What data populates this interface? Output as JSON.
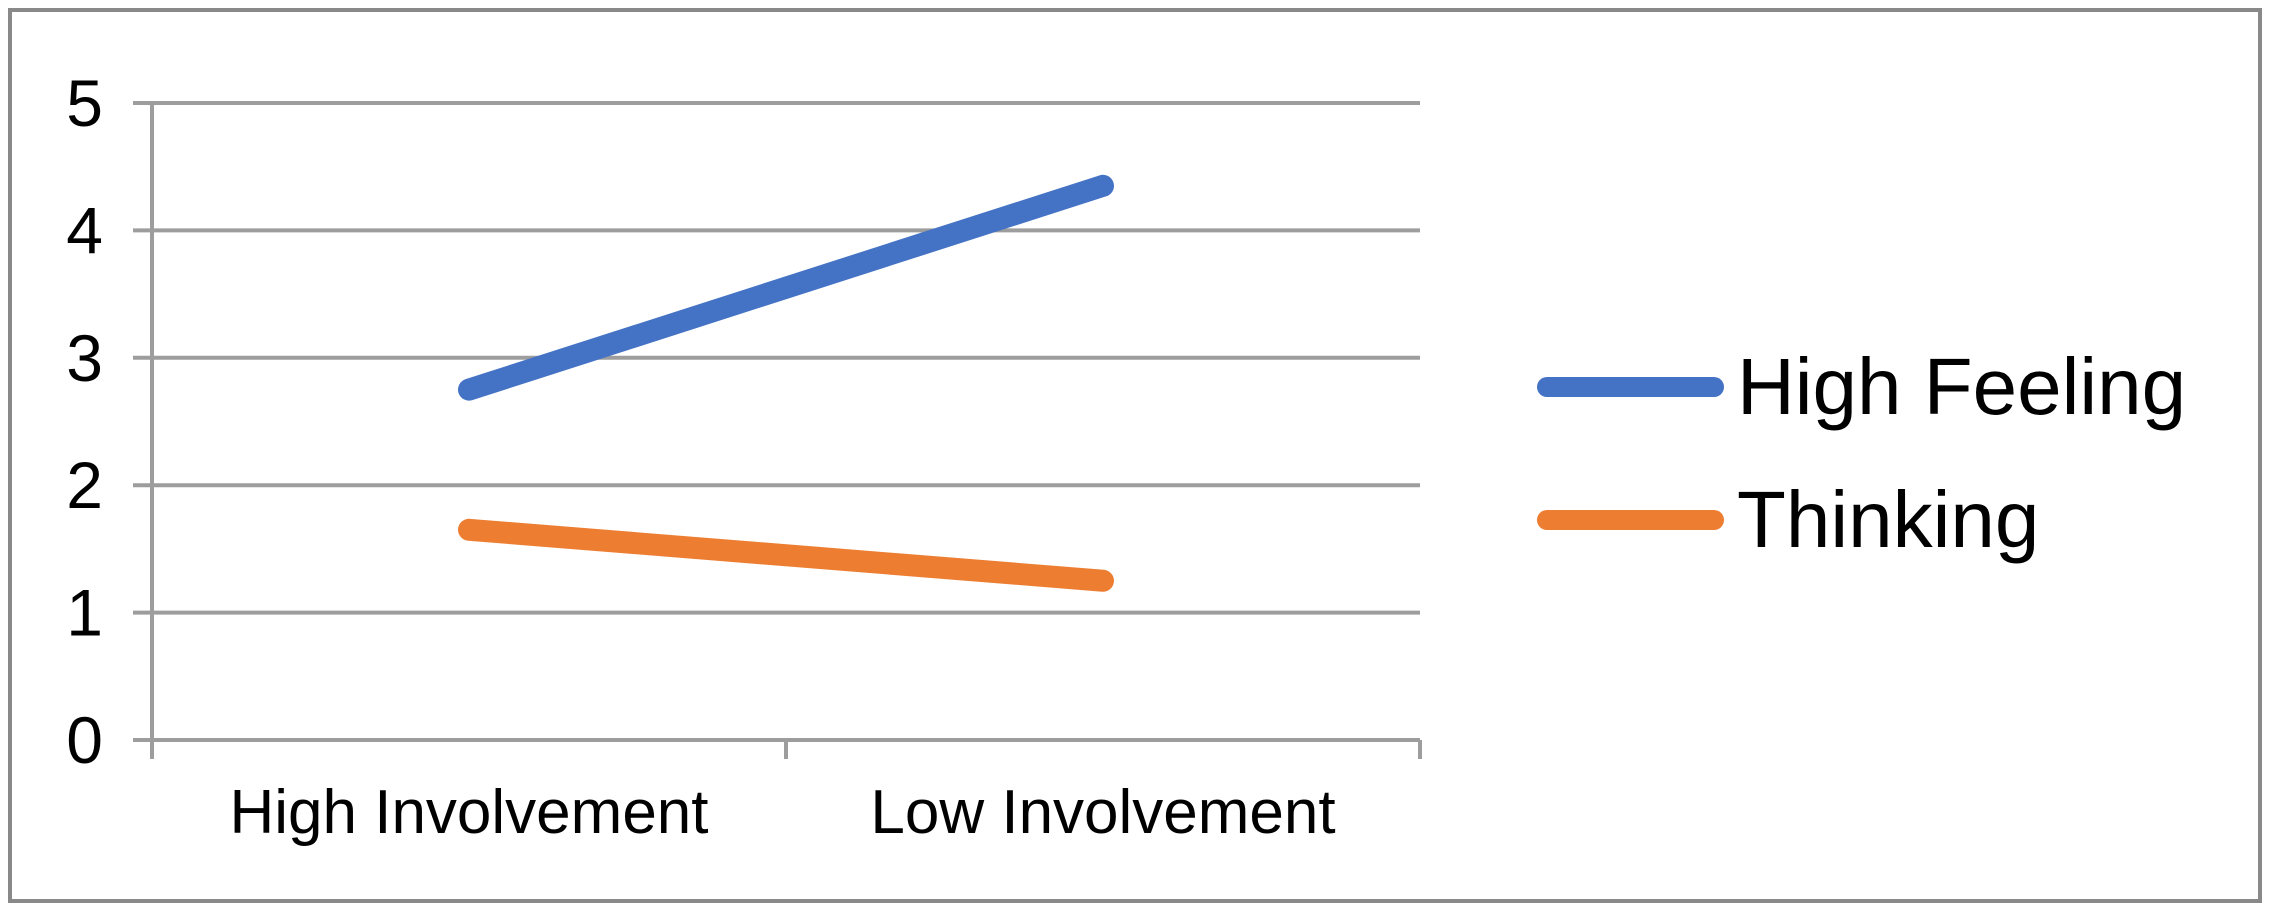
{
  "chart_data": {
    "type": "line",
    "title": "",
    "xlabel": "",
    "ylabel": "",
    "categories": [
      "High Involvement",
      "Low Involvement"
    ],
    "series": [
      {
        "name": "High Feeling",
        "values": [
          2.75,
          4.35
        ],
        "color": "#4472C4"
      },
      {
        "name": "Thinking",
        "values": [
          1.65,
          1.25
        ],
        "color": "#ED7D31"
      }
    ],
    "ylim": [
      0,
      5
    ],
    "yticks": [
      0,
      1,
      2,
      3,
      4,
      5
    ],
    "grid": true,
    "legend_position": "right",
    "grid_color": "#9D9D9D",
    "axis_color": "#9D9D9D",
    "text_color": "#000000",
    "frame_color": "#898989"
  }
}
